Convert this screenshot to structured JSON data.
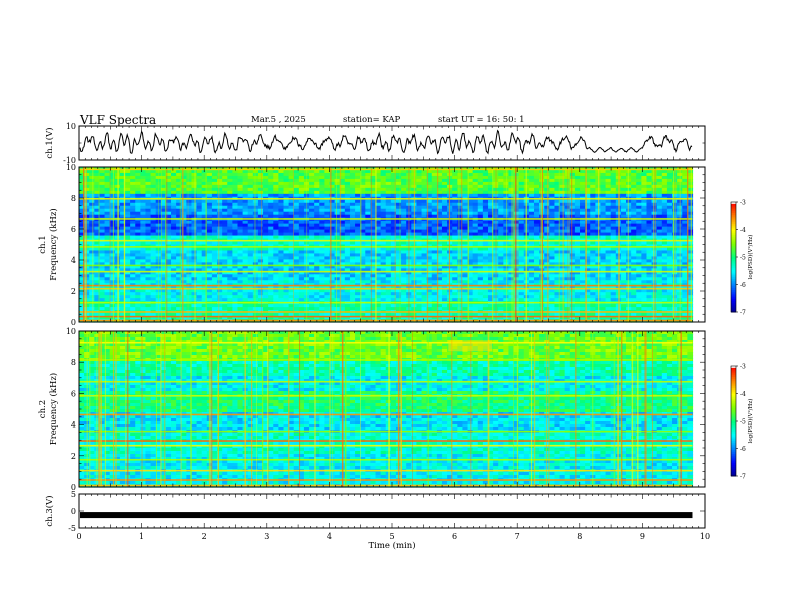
{
  "header": {
    "title": "VLF Spectra",
    "date": "Mar.5 , 2025",
    "station": "station= KAP",
    "start": "start UT = 16: 50: 1"
  },
  "chart_data": [
    {
      "type": "line",
      "name": "ch1-waveform",
      "ylabel": "ch.1(V)",
      "ylim": [
        -10,
        10
      ],
      "yticks": [
        "10",
        "-10"
      ],
      "xlim": [
        0,
        10
      ],
      "description_values": "oscillating waveform, roughly -6 to 8 V, continuous over 0-9.8 min"
    },
    {
      "type": "heatmap",
      "name": "ch1-spectrogram",
      "ylabel_top": "ch.1",
      "ylabel": "Frequency (kHz)",
      "ylim": [
        0,
        10
      ],
      "yticks": [
        "0",
        "2",
        "4",
        "6",
        "8",
        "10"
      ],
      "xlim": [
        0,
        10
      ],
      "data_end_min": 9.8,
      "colorbar": {
        "label": "log(PSD)(V²/Hz)",
        "range": [
          -7,
          -3
        ],
        "ticks": [
          "-3",
          "-4",
          "-5",
          "-6",
          "-7"
        ]
      }
    },
    {
      "type": "heatmap",
      "name": "ch2-spectrogram",
      "ylabel_top": "ch.2",
      "ylabel": "Frequency (kHz)",
      "ylim": [
        0,
        10
      ],
      "yticks": [
        "0",
        "2",
        "4",
        "6",
        "8",
        "10"
      ],
      "xlim": [
        0,
        10
      ],
      "data_end_min": 9.8,
      "colorbar": {
        "label": "log(PSD)(V²/Hz)",
        "range": [
          -7,
          -3
        ],
        "ticks": [
          "-3",
          "-4",
          "-5",
          "-6",
          "-7"
        ]
      }
    },
    {
      "type": "line",
      "name": "ch3-signal",
      "ylabel": "ch.3(V)",
      "ylim": [
        -5,
        5
      ],
      "yticks": [
        "5",
        "0",
        "-5"
      ],
      "xlim": [
        0,
        10
      ],
      "value": -1.2,
      "data_end_min": 9.8
    }
  ],
  "xaxis": {
    "label": "Time (min)",
    "ticks": [
      "0",
      "1",
      "2",
      "3",
      "4",
      "5",
      "6",
      "7",
      "8",
      "9",
      "10"
    ]
  },
  "colors": {
    "scale": [
      "#00008b",
      "#0000ff",
      "#0080ff",
      "#00ffff",
      "#00ff80",
      "#80ff00",
      "#ffff00",
      "#ff8000",
      "#ff0000",
      "#ffffff"
    ]
  }
}
